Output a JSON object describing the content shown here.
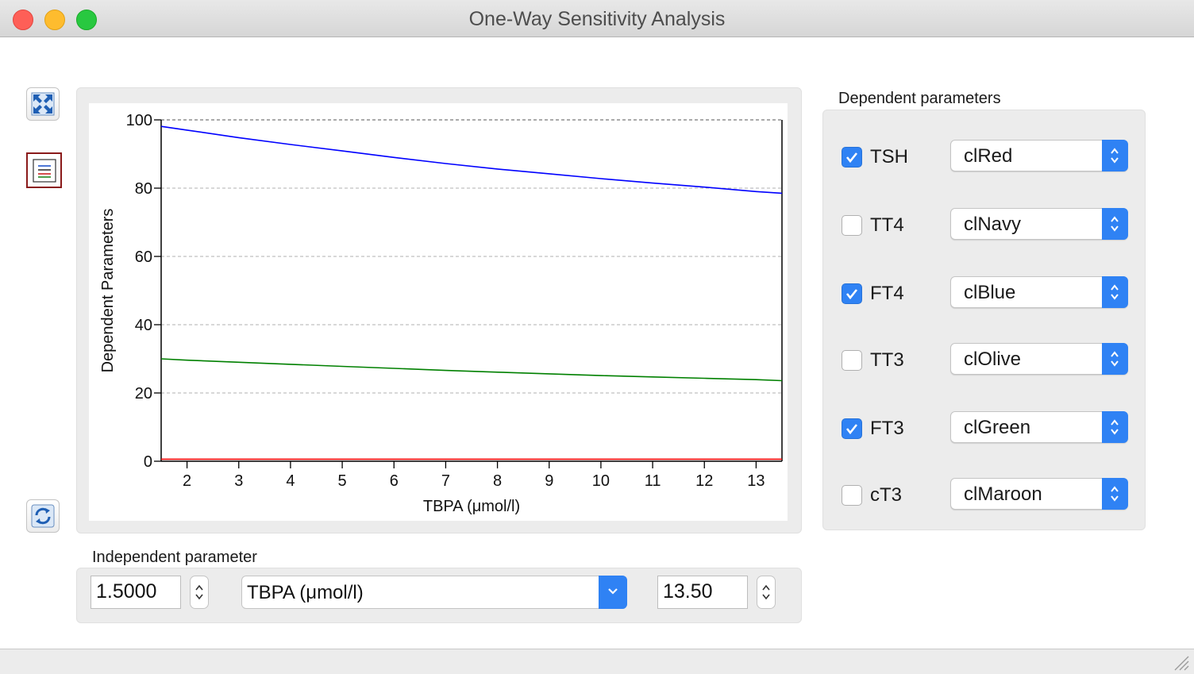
{
  "window": {
    "title": "One-Way Sensitivity Analysis"
  },
  "toolbar": [
    {
      "name": "fullscreen",
      "icon": "fullscreen-arrows-icon"
    },
    {
      "name": "legend",
      "icon": "legend-icon"
    },
    {
      "name": "reset",
      "icon": "refresh-icon"
    }
  ],
  "chart_data": {
    "type": "line",
    "title": "",
    "xlabel": "TBPA (μmol/l)",
    "ylabel": "Dependent Parameters",
    "xlim": [
      1.5,
      13.5
    ],
    "ylim": [
      0,
      100
    ],
    "xticks": [
      2,
      3,
      4,
      5,
      6,
      7,
      8,
      9,
      10,
      11,
      12,
      13
    ],
    "yticks": [
      0,
      20,
      40,
      60,
      80,
      100
    ],
    "grid": "horizontal dashed",
    "series": [
      {
        "color": "#0000ff",
        "x": [
          1.5,
          2,
          3,
          4,
          5,
          6,
          7,
          8,
          9,
          10,
          11,
          12,
          13,
          13.5
        ],
        "y": [
          98.1,
          97.0,
          94.8,
          92.8,
          90.9,
          89.0,
          87.2,
          85.6,
          84.2,
          82.8,
          81.5,
          80.3,
          79.0,
          78.5
        ]
      },
      {
        "color": "#008000",
        "x": [
          1.5,
          2,
          3,
          4,
          5,
          6,
          7,
          8,
          9,
          10,
          11,
          12,
          13,
          13.5
        ],
        "y": [
          30.0,
          29.6,
          29.0,
          28.4,
          27.8,
          27.2,
          26.6,
          26.1,
          25.6,
          25.1,
          24.7,
          24.3,
          23.9,
          23.6
        ]
      },
      {
        "color": "#ff0000",
        "x": [
          1.5,
          13.5
        ],
        "y": [
          0.6,
          0.6
        ]
      }
    ]
  },
  "dependent": {
    "label": "Dependent parameters",
    "items": [
      {
        "name": "TSH",
        "checked": true,
        "color": "clRed"
      },
      {
        "name": "TT4",
        "checked": false,
        "color": "clNavy"
      },
      {
        "name": "FT4",
        "checked": true,
        "color": "clBlue"
      },
      {
        "name": "TT3",
        "checked": false,
        "color": "clOlive"
      },
      {
        "name": "FT3",
        "checked": true,
        "color": "clGreen"
      },
      {
        "name": "cT3",
        "checked": false,
        "color": "clMaroon"
      }
    ]
  },
  "independent": {
    "label": "Independent parameter",
    "min": "1.5000",
    "parameter": "TBPA (μmol/l)",
    "max": "13.50"
  }
}
